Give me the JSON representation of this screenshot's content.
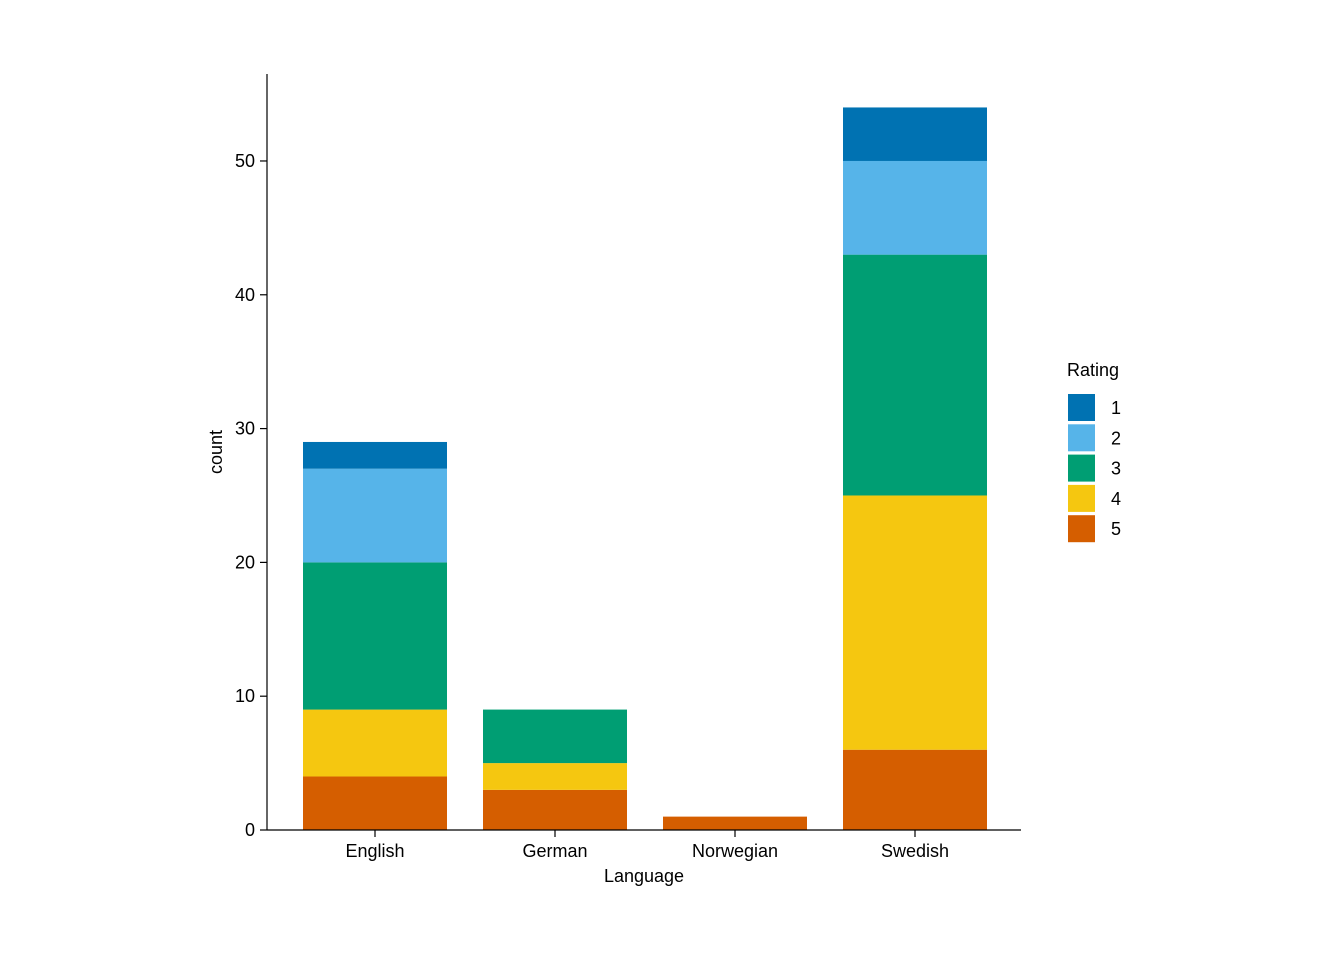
{
  "chart_data": {
    "type": "bar",
    "stacked": true,
    "categories": [
      "English",
      "German",
      "Norwegian",
      "Swedish"
    ],
    "xlabel": "Language",
    "ylabel": "count",
    "ylim": [
      0,
      56.5
    ],
    "yticks": [
      0,
      10,
      20,
      30,
      40,
      50
    ],
    "grid": false,
    "legend": {
      "title": "Rating",
      "placement": "right"
    },
    "series": [
      {
        "name": "1",
        "color": "#0072B2",
        "values": [
          2,
          0,
          0,
          4
        ]
      },
      {
        "name": "2",
        "color": "#56B4E9",
        "values": [
          7,
          0,
          0,
          7
        ]
      },
      {
        "name": "3",
        "color": "#009E73",
        "values": [
          11,
          4,
          0,
          18
        ]
      },
      {
        "name": "4",
        "color": "#F5C710",
        "values": [
          5,
          2,
          0,
          19
        ]
      },
      {
        "name": "5",
        "color": "#D55E00",
        "values": [
          4,
          3,
          1,
          6
        ]
      }
    ],
    "stack_order_bottom_to_top": [
      "5",
      "4",
      "3",
      "2",
      "1"
    ]
  }
}
